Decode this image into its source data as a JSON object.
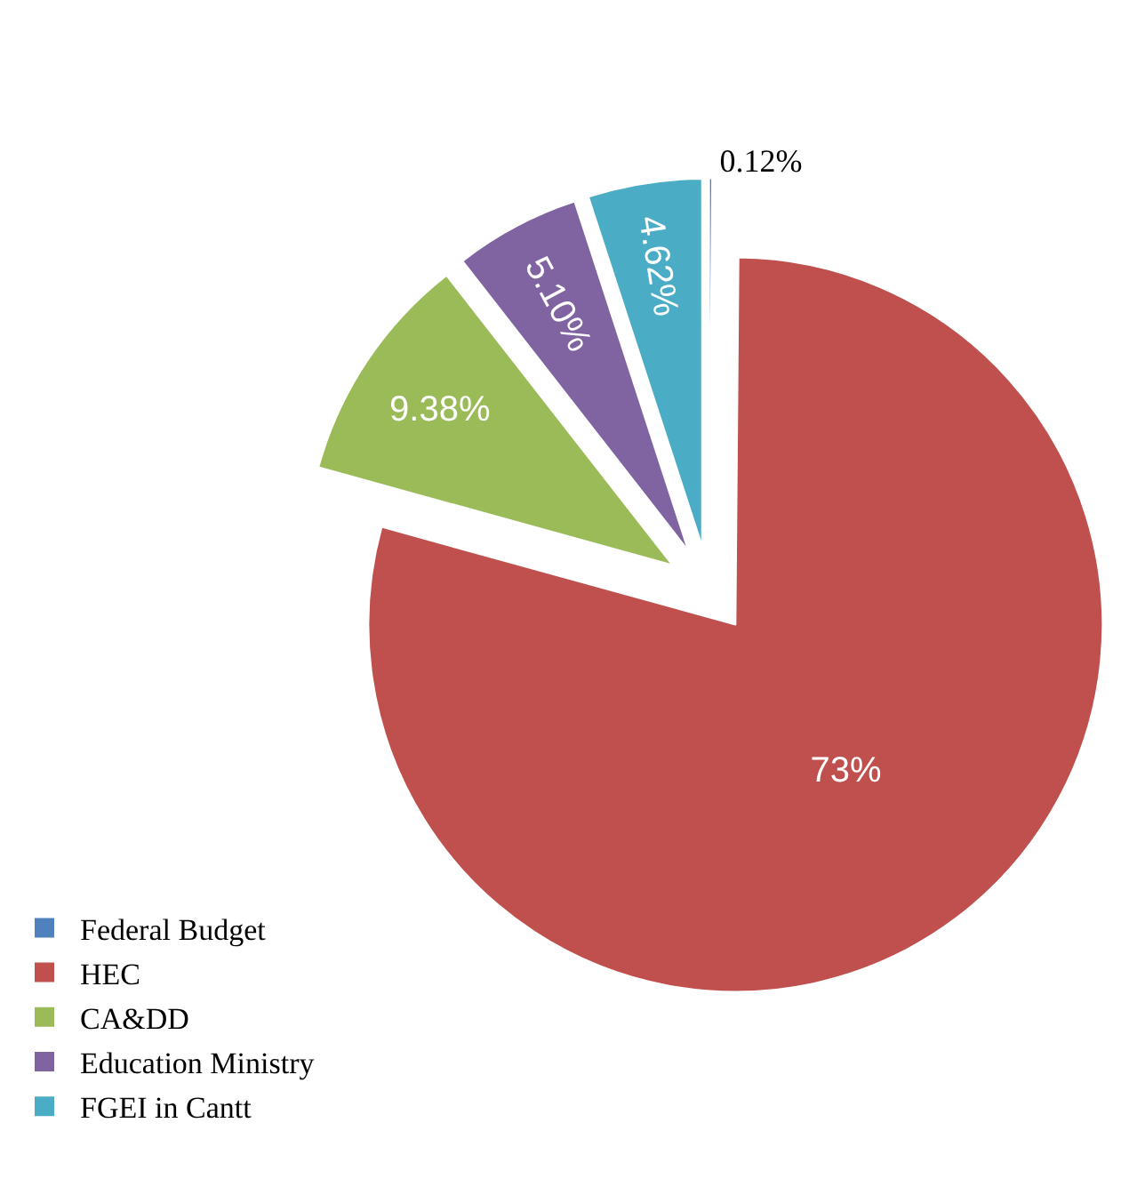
{
  "chart_data": {
    "type": "pie",
    "categories": [
      "Federal Budget",
      "HEC",
      "CA&DD",
      "Education Ministry",
      "FGEI in Cantt"
    ],
    "values": [
      0.12,
      73,
      9.38,
      5.1,
      4.62
    ],
    "value_labels": [
      "0.12%",
      "73%",
      "9.38%",
      "5.10%",
      "4.62%"
    ],
    "colors": [
      "#4f81bd",
      "#c0504d",
      "#9bbb59",
      "#8064a2",
      "#4bacc6"
    ],
    "legend": "bottom left"
  }
}
